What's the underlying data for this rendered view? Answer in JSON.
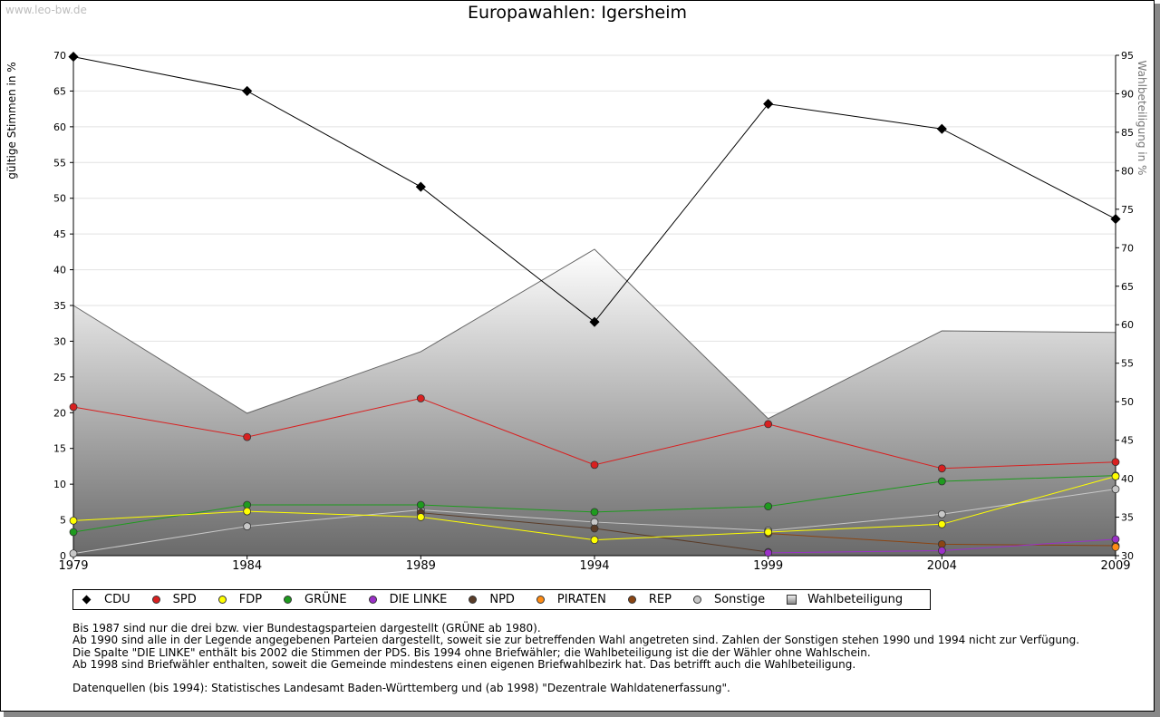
{
  "watermark": "www.leo-bw.de",
  "colors": {
    "CDU": "#000000",
    "SPD": "#d92020",
    "FDP": "#ffff00",
    "GRÜNE": "#1e9b1e",
    "DIE LINKE": "#9b30c8",
    "NPD": "#5a3c28",
    "PIRATEN": "#ff8c14",
    "REP": "#8b4513",
    "Sonstige": "#c8c8c8",
    "Wahlbeteiligung": "#888888"
  },
  "chart_data": {
    "type": "line",
    "title": "Europawahlen: Igersheim",
    "ylabel": "gültige Stimmen in %",
    "y2label": "Wahlbeteiligung in %",
    "x": [
      1979,
      1984,
      1989,
      1994,
      1999,
      2004,
      2009
    ],
    "ylim": [
      0,
      70
    ],
    "y_ticks": [
      0,
      5,
      10,
      15,
      20,
      25,
      30,
      35,
      40,
      45,
      50,
      55,
      60,
      65,
      70
    ],
    "y2lim": [
      30,
      95
    ],
    "y2_ticks": [
      30,
      35,
      40,
      45,
      50,
      55,
      60,
      65,
      70,
      75,
      80,
      85,
      90,
      95
    ],
    "grid": true,
    "series": [
      {
        "name": "CDU",
        "marker": "diamond",
        "values": [
          69.8,
          65.0,
          51.6,
          32.7,
          63.2,
          59.7,
          47.1
        ]
      },
      {
        "name": "SPD",
        "marker": "circle",
        "values": [
          20.8,
          16.6,
          22.0,
          12.7,
          18.4,
          12.2,
          13.1
        ]
      },
      {
        "name": "FDP",
        "marker": "circle",
        "values": [
          4.9,
          6.2,
          5.4,
          2.2,
          3.3,
          4.4,
          11.1
        ]
      },
      {
        "name": "GRÜNE",
        "marker": "circle",
        "values": [
          3.3,
          7.1,
          7.1,
          6.1,
          6.9,
          10.4,
          11.2
        ]
      },
      {
        "name": "DIE LINKE",
        "marker": "circle",
        "values": [
          null,
          null,
          null,
          null,
          0.4,
          0.7,
          2.3
        ]
      },
      {
        "name": "NPD",
        "marker": "circle",
        "values": [
          null,
          null,
          6.0,
          3.8,
          0.5,
          null,
          null
        ]
      },
      {
        "name": "PIRATEN",
        "marker": "circle",
        "values": [
          null,
          null,
          null,
          null,
          null,
          null,
          1.2
        ]
      },
      {
        "name": "REP",
        "marker": "circle",
        "values": [
          null,
          null,
          null,
          null,
          3.1,
          1.6,
          1.4
        ]
      },
      {
        "name": "Sonstige",
        "marker": "circle",
        "values": [
          0.3,
          4.1,
          6.4,
          4.7,
          3.5,
          5.8,
          9.3
        ]
      },
      {
        "name": "Wahlbeteiligung",
        "marker": "area",
        "axis": "y2",
        "values": [
          62.5,
          48.5,
          56.5,
          69.8,
          47.8,
          59.2,
          59.0
        ]
      }
    ]
  },
  "legend": [
    "CDU",
    "SPD",
    "FDP",
    "GRÜNE",
    "DIE LINKE",
    "NPD",
    "PIRATEN",
    "REP",
    "Sonstige",
    "Wahlbeteiligung"
  ],
  "notes": [
    "Bis 1987 sind nur die drei bzw. vier Bundestagsparteien dargestellt (GRÜNE ab 1980).",
    "Ab 1990 sind alle in der Legende angegebenen Parteien dargestellt, soweit sie zur betreffenden Wahl angetreten sind. Zahlen der Sonstigen stehen 1990 und 1994 nicht zur Verfügung.",
    "Die Spalte \"DIE LINKE\" enthält bis 2002 die Stimmen der PDS. Bis 1994 ohne Briefwähler; die Wahlbeteiligung ist die der Wähler ohne Wahlschein.",
    "Ab 1998 sind Briefwähler enthalten, soweit die Gemeinde mindestens einen eigenen Briefwahlbezirk hat. Das betrifft auch die Wahlbeteiligung."
  ],
  "source": "Datenquellen (bis 1994): Statistisches Landesamt Baden-Württemberg und (ab 1998) \"Dezentrale Wahldatenerfassung\"."
}
